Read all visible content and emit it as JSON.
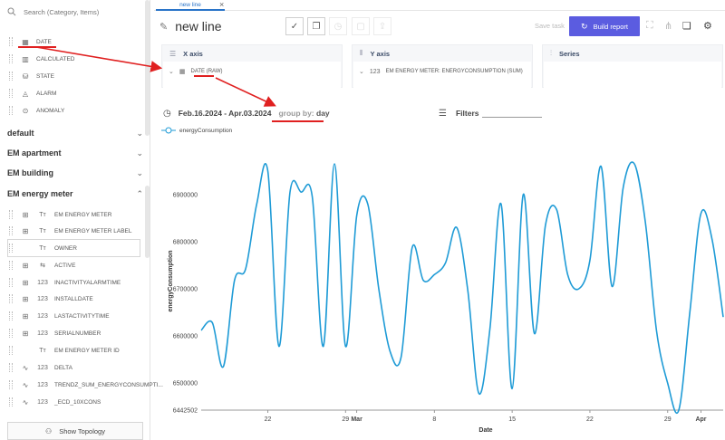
{
  "sidebar": {
    "search_placeholder": "Search (Category, Items)",
    "calculated_fields": [
      {
        "label": "DATE",
        "icon": "calendar-icon"
      },
      {
        "label": "CALCULATED",
        "icon": "calculator-icon"
      },
      {
        "label": "STATE",
        "icon": "state-icon"
      },
      {
        "label": "ALARM",
        "icon": "bell-icon"
      },
      {
        "label": "ANOMALY",
        "icon": "search-icon"
      }
    ],
    "groups": [
      {
        "label": "default",
        "expanded": false
      },
      {
        "label": "EM apartment",
        "expanded": false
      },
      {
        "label": "EM building",
        "expanded": false
      },
      {
        "label": "EM energy meter",
        "expanded": true
      }
    ],
    "energy_meter_fields": [
      {
        "label": "EM ENERGY METER",
        "type": "Tт"
      },
      {
        "label": "EM ENERGY METER LABEL",
        "type": "Tт"
      },
      {
        "label": "OWNER",
        "type": "Tт"
      },
      {
        "label": "ACTIVE",
        "type": "⇆"
      },
      {
        "label": "INACTIVITYALARMTIME",
        "type": "123"
      },
      {
        "label": "INSTALLDATE",
        "type": "123"
      },
      {
        "label": "LASTACTIVITYTIME",
        "type": "123"
      },
      {
        "label": "SERIALNUMBER",
        "type": "123"
      },
      {
        "label": "EM ENERGY METER ID",
        "type": "Tт"
      },
      {
        "label": "DELTA",
        "type": "123"
      },
      {
        "label": "TRENDZ_SUM_ENERGYCONSUMPTI...",
        "type": "123"
      },
      {
        "label": "_ECD_10XCONS",
        "type": "123"
      }
    ],
    "topology_button": "Show Topology"
  },
  "tab": {
    "label": "new line"
  },
  "header": {
    "title": "new line",
    "save_task": "Save task",
    "build_report": "Build report"
  },
  "panels": {
    "x_axis": {
      "title": "X axis",
      "item": "DATE (RAW)"
    },
    "y_axis": {
      "title": "Y axis",
      "item": "EM ENERGY METER: ENERGYCONSUMPTION (SUM)"
    },
    "series": {
      "title": "Series"
    }
  },
  "filter_row": {
    "date_range": "Feb.16.2024 - Apr.03.2024",
    "group_by_label": "group by:",
    "group_by_value": "day",
    "filters_label": "Filters"
  },
  "legend": {
    "label": "energyConsumption"
  },
  "colors": {
    "line": "#1f9bd6",
    "accent": "#5b5ce0",
    "annotation": "#e02020"
  },
  "chart_data": {
    "type": "line",
    "x_label": "Date",
    "y_label": "energyConsumption",
    "y_ticks": [
      6442502,
      6500000,
      6600000,
      6700000,
      6800000,
      6900000
    ],
    "ylim": [
      6442502,
      6990000
    ],
    "x_ticks": [
      {
        "date": "2024-02-22",
        "label": "22",
        "bold": false
      },
      {
        "date": "2024-02-29",
        "label": "29",
        "bold": false
      },
      {
        "date": "2024-03-01",
        "label": "Mar",
        "bold": true
      },
      {
        "date": "2024-03-08",
        "label": "8",
        "bold": false
      },
      {
        "date": "2024-03-15",
        "label": "15",
        "bold": false
      },
      {
        "date": "2024-03-22",
        "label": "22",
        "bold": false
      },
      {
        "date": "2024-03-29",
        "label": "29",
        "bold": false
      },
      {
        "date": "2024-04-01",
        "label": "Apr",
        "bold": true
      }
    ],
    "x_range": [
      "2024-02-16",
      "2024-04-03"
    ],
    "grid": false,
    "series": [
      {
        "name": "energyConsumption",
        "points": [
          {
            "x": "2024-02-16",
            "y": 6612000
          },
          {
            "x": "2024-02-17",
            "y": 6628000
          },
          {
            "x": "2024-02-18",
            "y": 6535000
          },
          {
            "x": "2024-02-19",
            "y": 6718000
          },
          {
            "x": "2024-02-20",
            "y": 6742000
          },
          {
            "x": "2024-02-21",
            "y": 6880000
          },
          {
            "x": "2024-02-22",
            "y": 6950000
          },
          {
            "x": "2024-02-23",
            "y": 6578000
          },
          {
            "x": "2024-02-24",
            "y": 6905000
          },
          {
            "x": "2024-02-25",
            "y": 6905000
          },
          {
            "x": "2024-02-26",
            "y": 6895000
          },
          {
            "x": "2024-02-27",
            "y": 6578000
          },
          {
            "x": "2024-02-28",
            "y": 6965000
          },
          {
            "x": "2024-02-29",
            "y": 6578000
          },
          {
            "x": "2024-03-01",
            "y": 6855000
          },
          {
            "x": "2024-03-02",
            "y": 6880000
          },
          {
            "x": "2024-03-03",
            "y": 6698000
          },
          {
            "x": "2024-03-04",
            "y": 6568000
          },
          {
            "x": "2024-03-05",
            "y": 6555000
          },
          {
            "x": "2024-03-06",
            "y": 6788000
          },
          {
            "x": "2024-03-07",
            "y": 6718000
          },
          {
            "x": "2024-03-08",
            "y": 6730000
          },
          {
            "x": "2024-03-09",
            "y": 6755000
          },
          {
            "x": "2024-03-10",
            "y": 6830000
          },
          {
            "x": "2024-03-11",
            "y": 6698000
          },
          {
            "x": "2024-03-12",
            "y": 6478000
          },
          {
            "x": "2024-03-13",
            "y": 6615000
          },
          {
            "x": "2024-03-14",
            "y": 6880000
          },
          {
            "x": "2024-03-15",
            "y": 6488000
          },
          {
            "x": "2024-03-16",
            "y": 6900000
          },
          {
            "x": "2024-03-17",
            "y": 6605000
          },
          {
            "x": "2024-03-18",
            "y": 6835000
          },
          {
            "x": "2024-03-19",
            "y": 6868000
          },
          {
            "x": "2024-03-20",
            "y": 6730000
          },
          {
            "x": "2024-03-21",
            "y": 6700000
          },
          {
            "x": "2024-03-22",
            "y": 6760000
          },
          {
            "x": "2024-03-23",
            "y": 6960000
          },
          {
            "x": "2024-03-24",
            "y": 6705000
          },
          {
            "x": "2024-03-25",
            "y": 6915000
          },
          {
            "x": "2024-03-26",
            "y": 6965000
          },
          {
            "x": "2024-03-27",
            "y": 6840000
          },
          {
            "x": "2024-03-28",
            "y": 6610000
          },
          {
            "x": "2024-03-29",
            "y": 6500000
          },
          {
            "x": "2024-03-30",
            "y": 6442502
          },
          {
            "x": "2024-03-31",
            "y": 6650000
          },
          {
            "x": "2024-04-01",
            "y": 6860000
          },
          {
            "x": "2024-04-02",
            "y": 6805000
          },
          {
            "x": "2024-04-03",
            "y": 6640000
          }
        ]
      }
    ]
  }
}
